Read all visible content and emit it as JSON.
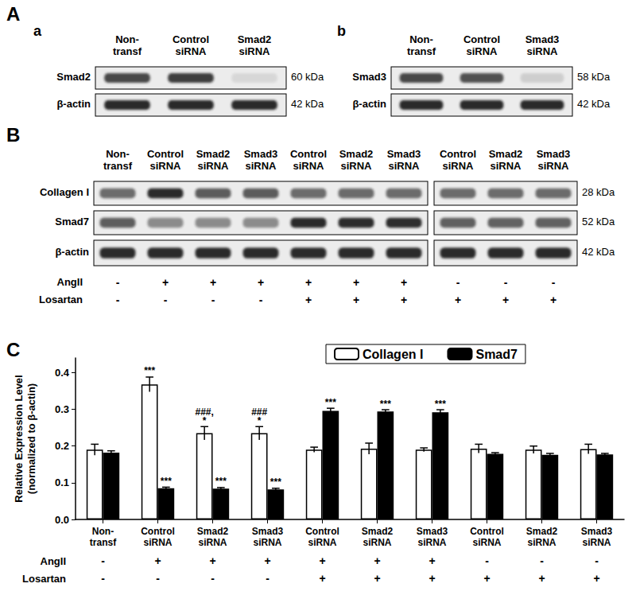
{
  "figure": {
    "panels": {
      "A": {
        "label": "A",
        "blots": [
          {
            "label": "a",
            "lanes": [
              "Non-\ntransf",
              "Control\nsiRNA",
              "Smad2\nsiRNA"
            ],
            "rows": [
              {
                "name": "Smad2",
                "size": "60 kDa",
                "levels": [
                  0.85,
                  0.9,
                  0.1
                ]
              },
              {
                "name": "β-actin",
                "size": "42 kDa",
                "levels": [
                  1,
                  1,
                  1
                ]
              }
            ]
          },
          {
            "label": "b",
            "lanes": [
              "Non-\ntransf",
              "Control\nsiRNA",
              "Smad3\nsiRNA"
            ],
            "rows": [
              {
                "name": "Smad3",
                "size": "58 kDa",
                "levels": [
                  0.85,
                  0.8,
                  0.15
                ]
              },
              {
                "name": "β-actin",
                "size": "42 kDa",
                "levels": [
                  1,
                  1,
                  1
                ]
              }
            ]
          }
        ]
      },
      "B": {
        "label": "B",
        "lanes": [
          "Non-\ntransf",
          "Control\nsiRNA",
          "Smad2\nsiRNA",
          "Smad3\nsiRNA",
          "Control\nsiRNA",
          "Smad2\nsiRNA",
          "Smad3\nsiRNA",
          "Control\nsiRNA",
          "Smad2\nsiRNA",
          "Smad3\nsiRNA"
        ],
        "rows": [
          {
            "name": "Collagen I",
            "size": "28 kDa"
          },
          {
            "name": "Smad7",
            "size": "52 kDa"
          },
          {
            "name": "β-actin",
            "size": "42 kDa",
            "levels": [
              1,
              1,
              1,
              1,
              1,
              1,
              1,
              1,
              1,
              1
            ]
          }
        ]
      },
      "C": {
        "label": "C"
      }
    },
    "treatments": [
      {
        "name": "AngII",
        "signs": [
          "-",
          "+",
          "+",
          "+",
          "+",
          "+",
          "+",
          "-",
          "-",
          "-"
        ]
      },
      {
        "name": "Losartan",
        "signs": [
          "-",
          "-",
          "-",
          "-",
          "+",
          "+",
          "+",
          "+",
          "+",
          "+"
        ]
      }
    ]
  },
  "chart_data": {
    "type": "bar",
    "y_label": "Relative Expression Level\n(normalized to β-actin)",
    "categories": [
      "Non-\ntransf",
      "Control\nsiRNA",
      "Smad2\nsiRNA",
      "Smad3\nsiRNA",
      "Control\nsiRNA",
      "Smad2\nsiRNA",
      "Smad3\nsiRNA",
      "Control\nsiRNA",
      "Smad2\nsiRNA",
      "Smad3\nsiRNA"
    ],
    "series": [
      {
        "name": "Collagen I",
        "color": "#ffffff",
        "values": [
          0.19,
          0.368,
          0.235,
          0.235,
          0.19,
          0.193,
          0.19,
          0.193,
          0.19,
          0.192
        ],
        "errors": [
          0.015,
          0.02,
          0.018,
          0.018,
          0.007,
          0.015,
          0.005,
          0.012,
          0.01,
          0.013
        ],
        "annotations": [
          null,
          "***",
          "###,\n*",
          "###\n*",
          null,
          null,
          null,
          null,
          null,
          null
        ]
      },
      {
        "name": "Smad7",
        "color": "#000000",
        "values": [
          0.182,
          0.085,
          0.084,
          0.082,
          0.296,
          0.294,
          0.292,
          0.179,
          0.176,
          0.177
        ],
        "errors": [
          0.005,
          0.003,
          0.003,
          0.003,
          0.007,
          0.005,
          0.007,
          0.003,
          0.004,
          0.003
        ],
        "annotations": [
          null,
          "***",
          "***",
          "***",
          "***",
          "***",
          "***",
          null,
          null,
          null
        ]
      }
    ],
    "ylim": [
      0,
      0.44
    ],
    "yticks": [
      {
        "value": 0,
        "label": "0.0"
      },
      0.1,
      0.2,
      0.3,
      0.4
    ],
    "legend": "top",
    "grid": false
  }
}
